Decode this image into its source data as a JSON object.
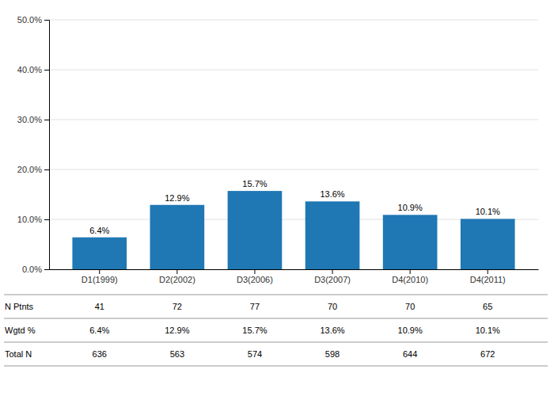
{
  "chart_data": {
    "type": "bar",
    "categories": [
      "D1(1999)",
      "D2(2002)",
      "D3(2006)",
      "D3(2007)",
      "D4(2010)",
      "D4(2011)"
    ],
    "values": [
      6.4,
      12.9,
      15.7,
      13.6,
      10.9,
      10.1
    ],
    "value_labels": [
      "6.4%",
      "12.9%",
      "15.7%",
      "13.6%",
      "10.9%",
      "10.1%"
    ],
    "data_labels": true,
    "ylim": [
      0,
      50
    ],
    "yticks": [
      {
        "value": 0,
        "label": "0.0%"
      },
      {
        "value": 10,
        "label": "10.0%"
      },
      {
        "value": 20,
        "label": "20.0%"
      },
      {
        "value": 30,
        "label": "30.0%"
      },
      {
        "value": 40,
        "label": "40.0%"
      },
      {
        "value": 50,
        "label": "50.0%"
      }
    ],
    "grid": true,
    "table": [
      {
        "name": "N Ptnts",
        "values": [
          41,
          72,
          77,
          70,
          70,
          65
        ]
      },
      {
        "name": "Wgtd %",
        "values": [
          6.4,
          12.9,
          15.7,
          13.6,
          10.9,
          10.1
        ],
        "value_labels": [
          "6.4%",
          "12.9%",
          "15.7%",
          "13.6%",
          "10.9%",
          "10.1%"
        ]
      },
      {
        "name": "Total N",
        "values": [
          636,
          563,
          574,
          598,
          644,
          672
        ]
      }
    ]
  }
}
